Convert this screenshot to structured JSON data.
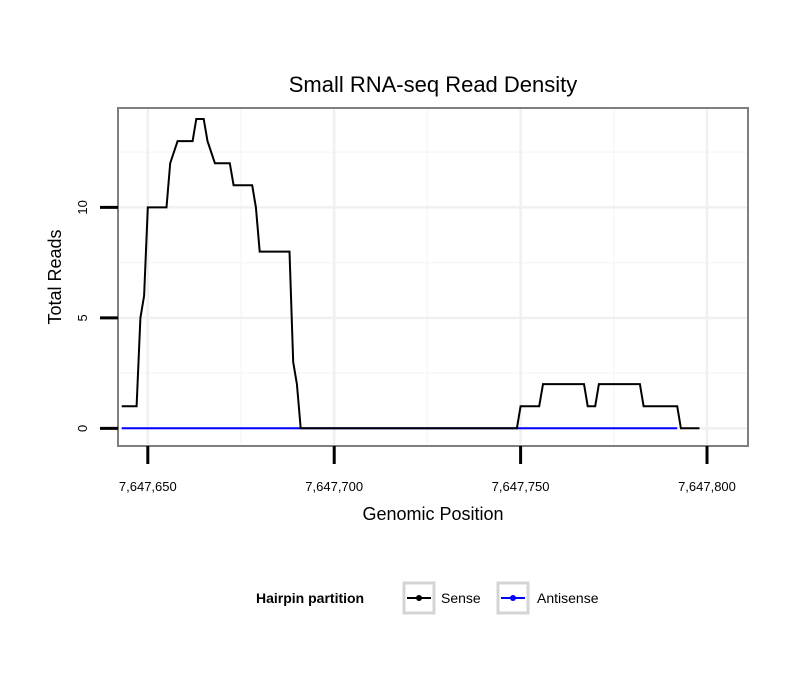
{
  "chart_data": {
    "type": "line",
    "title": "Small RNA-seq Read Density",
    "xlabel": "Genomic Position",
    "ylabel": "Total Reads",
    "xlim": [
      7647642,
      7647811
    ],
    "ylim": [
      -0.8,
      14.5
    ],
    "x_ticks": [
      7647650,
      7647700,
      7647750,
      7647800
    ],
    "x_tick_labels": [
      "7,647,650",
      "7,647,700",
      "7,647,750",
      "7,647,800"
    ],
    "y_ticks": [
      0,
      5,
      10
    ],
    "y_tick_labels": [
      "0",
      "5",
      "10"
    ],
    "grid": true,
    "legend": {
      "title": "Hairpin partition",
      "placement": "bottom",
      "entries": [
        {
          "label": "Sense",
          "color": "#000000"
        },
        {
          "label": "Antisense",
          "color": "#0000ff"
        }
      ]
    },
    "series": [
      {
        "name": "Sense",
        "color": "#000000",
        "x": [
          7647643,
          7647647,
          7647648,
          7647649,
          7647650,
          7647655,
          7647656,
          7647658,
          7647662,
          7647663,
          7647665,
          7647666,
          7647668,
          7647672,
          7647673,
          7647678,
          7647679,
          7647680,
          7647688,
          7647689,
          7647690,
          7647691,
          7647749,
          7647750,
          7647755,
          7647756,
          7647767,
          7647768,
          7647770,
          7647771,
          7647782,
          7647783,
          7647792,
          7647793,
          7647798
        ],
        "y": [
          1,
          1,
          5,
          6,
          10,
          10,
          12,
          13,
          13,
          14,
          14,
          13,
          12,
          12,
          11,
          11,
          10,
          8,
          8,
          3,
          2,
          0,
          0,
          1,
          1,
          2,
          2,
          1,
          1,
          2,
          2,
          1,
          1,
          0,
          0
        ]
      },
      {
        "name": "Antisense",
        "color": "#0000ff",
        "x": [
          7647643,
          7647792
        ],
        "y": [
          0,
          0
        ]
      }
    ]
  }
}
